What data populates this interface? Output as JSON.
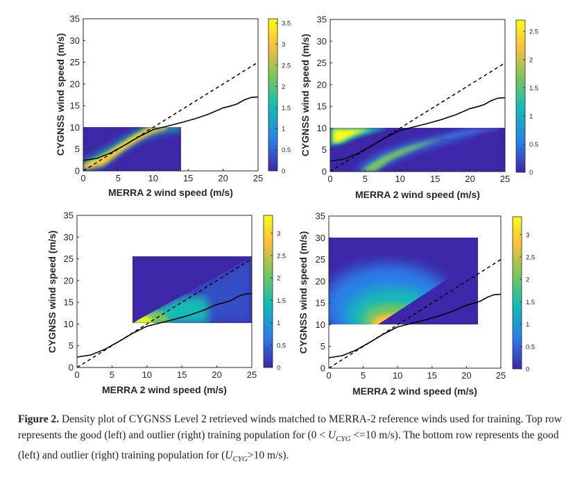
{
  "figure": {
    "xlabel": "MERRA 2 wind speed (m/s)",
    "ylabel": "CYGNSS wind speed (m/s)",
    "x_ticks": [
      "0",
      "5",
      "10",
      "15",
      "20",
      "25"
    ],
    "y_ticks": [
      "0",
      "5",
      "10",
      "15",
      "20",
      "25",
      "30",
      "35"
    ],
    "colormap": [
      "#3e26a8",
      "#2a7fe8",
      "#12bcb5",
      "#79c65b",
      "#fcbf3b",
      "#f9fb15"
    ],
    "line_colors": {
      "mean": "#000000",
      "one_to_one": "#000000"
    }
  },
  "caption": {
    "label": "Figure 2.",
    "part1": "Density plot of CYGNSS Level 2 retrieved winds matched to MERRA-2 reference winds used for training. Top row represents the good (left) and outlier (right) training population for (0 <",
    "var": "U",
    "sub": "CYG",
    "part2": "<=10 m/s). The bottom row represents the good (left) and outlier (right) training population for",
    "part3": "(",
    "part4": ">10 m/s)."
  },
  "chart_data": [
    {
      "type": "heatmap",
      "panel": "top-left",
      "xlim": [
        0,
        25
      ],
      "ylim": [
        0,
        35
      ],
      "density_extent": {
        "x": [
          0,
          14
        ],
        "y": [
          0,
          10
        ]
      },
      "colorbar": {
        "range": [
          0,
          3.6
        ],
        "ticks": [
          "0",
          "0.5",
          "1",
          "1.5",
          "2",
          "2.5",
          "3",
          "3.5"
        ]
      },
      "mean_curve": {
        "x": [
          0,
          2,
          4,
          6,
          8,
          10,
          12,
          14,
          16,
          18,
          20,
          21,
          22,
          23,
          24,
          25
        ],
        "y": [
          2.4,
          2.9,
          4.2,
          6.0,
          7.9,
          9.5,
          10.3,
          11.1,
          12.0,
          13.1,
          14.5,
          14.9,
          15.4,
          16.3,
          16.9,
          17.0
        ]
      },
      "one_to_one": {
        "x": [
          0,
          25
        ],
        "y": [
          0,
          25
        ]
      }
    },
    {
      "type": "heatmap",
      "panel": "top-right",
      "xlim": [
        0,
        25
      ],
      "ylim": [
        0,
        35
      ],
      "density_extent": {
        "x": [
          0,
          25
        ],
        "y": [
          0,
          10
        ]
      },
      "colorbar": {
        "range": [
          0,
          2.7
        ],
        "ticks": [
          "0",
          "0.5",
          "1",
          "1.5",
          "2",
          "2.5"
        ]
      },
      "mean_curve": {
        "x": [
          0,
          2,
          4,
          6,
          8,
          10,
          12,
          14,
          16,
          18,
          20,
          21,
          22,
          23,
          24,
          25
        ],
        "y": [
          2.4,
          2.9,
          4.2,
          6.0,
          7.9,
          9.5,
          10.3,
          11.1,
          12.0,
          13.1,
          14.5,
          14.9,
          15.4,
          16.3,
          16.9,
          17.0
        ]
      },
      "one_to_one": {
        "x": [
          0,
          25
        ],
        "y": [
          0,
          25
        ]
      }
    },
    {
      "type": "heatmap",
      "panel": "bottom-left",
      "xlim": [
        0,
        25
      ],
      "ylim": [
        0,
        35
      ],
      "density_extent": {
        "x": [
          8,
          25
        ],
        "y": [
          10,
          25.6
        ]
      },
      "colorbar": {
        "range": [
          0,
          3.4
        ],
        "ticks": [
          "0",
          "0.5",
          "1",
          "1.5",
          "2",
          "2.5",
          "3"
        ]
      },
      "mean_curve": {
        "x": [
          0,
          2,
          4,
          6,
          8,
          10,
          12,
          14,
          16,
          18,
          20,
          21,
          22,
          23,
          24,
          25
        ],
        "y": [
          2.4,
          2.9,
          4.2,
          6.0,
          7.9,
          9.5,
          10.3,
          11.1,
          12.0,
          13.1,
          14.5,
          14.9,
          15.4,
          16.3,
          16.9,
          17.0
        ]
      },
      "one_to_one": {
        "x": [
          0,
          25
        ],
        "y": [
          0,
          25
        ]
      }
    },
    {
      "type": "heatmap",
      "panel": "bottom-right",
      "xlim": [
        0,
        25
      ],
      "ylim": [
        0,
        35
      ],
      "density_extent": {
        "x": [
          0,
          21.3
        ],
        "y": [
          10,
          30
        ]
      },
      "colorbar": {
        "range": [
          0,
          3.4
        ],
        "ticks": [
          "0",
          "0.5",
          "1",
          "1.5",
          "2",
          "2.5",
          "3"
        ]
      },
      "mean_curve": {
        "x": [
          0,
          2,
          4,
          6,
          8,
          10,
          12,
          14,
          16,
          18,
          20,
          21,
          22,
          23,
          24,
          25
        ],
        "y": [
          2.4,
          2.9,
          4.2,
          6.0,
          7.9,
          9.5,
          10.3,
          11.1,
          12.0,
          13.1,
          14.5,
          14.9,
          15.4,
          16.3,
          16.9,
          17.0
        ]
      },
      "one_to_one": {
        "x": [
          0,
          25
        ],
        "y": [
          0,
          25
        ]
      }
    }
  ]
}
